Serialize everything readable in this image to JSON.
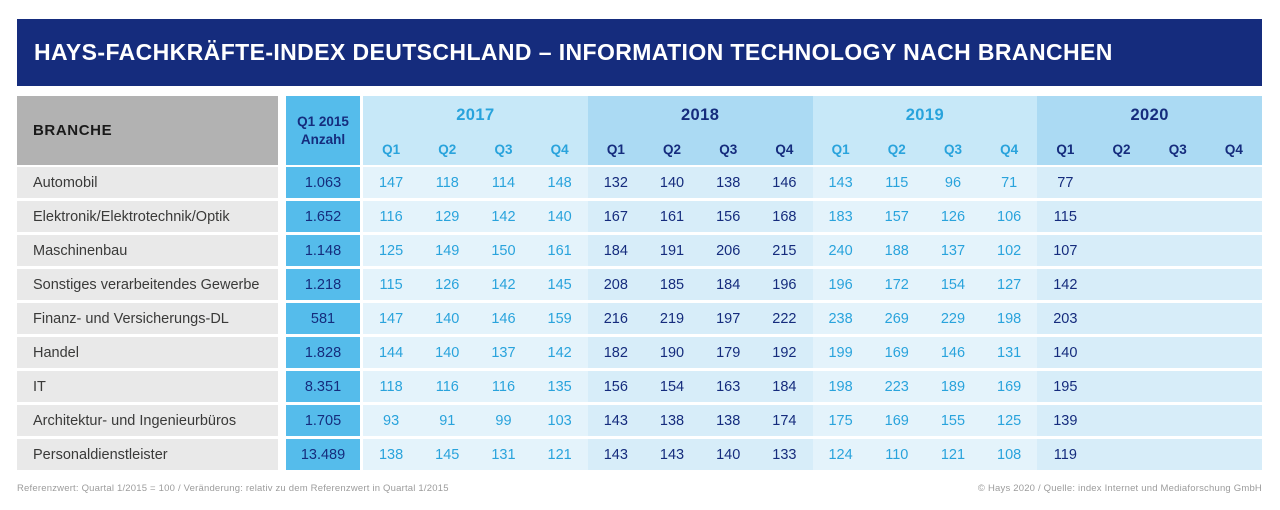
{
  "title": "HAYS-FACHKRÄFTE-INDEX DEUTSCHLAND – INFORMATION TECHNOLOGY NACH BRANCHEN",
  "colors": {
    "navy": "#152C7D",
    "accent_blue": "#29A3DC",
    "anzahl_column_bg": "#55BCEB",
    "group_header_light": "#C7E8F8",
    "group_header_medium": "#ABDAF3",
    "body_cell_light": "#E4F3FB",
    "body_cell_medium": "#D7EDF9",
    "branch_header_bg": "#B2B2B2",
    "branch_cell_bg": "#E9E9E9"
  },
  "chart_data": {
    "type": "table",
    "title": "HAYS-FACHKRÄFTE-INDEX DEUTSCHLAND – INFORMATION TECHNOLOGY NACH BRANCHEN",
    "row_header": "BRANCHE",
    "anzahl_header": [
      "Q1 2015",
      "Anzahl"
    ],
    "years": [
      {
        "year": "2017",
        "quarters": [
          "Q1",
          "Q2",
          "Q3",
          "Q4"
        ]
      },
      {
        "year": "2018",
        "quarters": [
          "Q1",
          "Q2",
          "Q3",
          "Q4"
        ]
      },
      {
        "year": "2019",
        "quarters": [
          "Q1",
          "Q2",
          "Q3",
          "Q4"
        ]
      },
      {
        "year": "2020",
        "quarters": [
          "Q1",
          "Q2",
          "Q3",
          "Q4"
        ]
      }
    ],
    "reference_note": "Referenzwert: Quartal 1/2015 = 100",
    "rows": [
      {
        "branch": "Automobil",
        "anzahl": "1.063",
        "values": [
          "147",
          "118",
          "114",
          "148",
          "132",
          "140",
          "138",
          "146",
          "143",
          "115",
          "96",
          "71",
          "77",
          "",
          "",
          ""
        ]
      },
      {
        "branch": "Elektronik/Elektrotechnik/Optik",
        "anzahl": "1.652",
        "values": [
          "116",
          "129",
          "142",
          "140",
          "167",
          "161",
          "156",
          "168",
          "183",
          "157",
          "126",
          "106",
          "115",
          "",
          "",
          ""
        ]
      },
      {
        "branch": "Maschinenbau",
        "anzahl": "1.148",
        "values": [
          "125",
          "149",
          "150",
          "161",
          "184",
          "191",
          "206",
          "215",
          "240",
          "188",
          "137",
          "102",
          "107",
          "",
          "",
          ""
        ]
      },
      {
        "branch": "Sonstiges verarbeitendes Gewerbe",
        "anzahl": "1.218",
        "values": [
          "115",
          "126",
          "142",
          "145",
          "208",
          "185",
          "184",
          "196",
          "196",
          "172",
          "154",
          "127",
          "142",
          "",
          "",
          ""
        ]
      },
      {
        "branch": "Finanz- und Versicherungs-DL",
        "anzahl": "581",
        "values": [
          "147",
          "140",
          "146",
          "159",
          "216",
          "219",
          "197",
          "222",
          "238",
          "269",
          "229",
          "198",
          "203",
          "",
          "",
          ""
        ]
      },
      {
        "branch": "Handel",
        "anzahl": "1.828",
        "values": [
          "144",
          "140",
          "137",
          "142",
          "182",
          "190",
          "179",
          "192",
          "199",
          "169",
          "146",
          "131",
          "140",
          "",
          "",
          ""
        ]
      },
      {
        "branch": "IT",
        "anzahl": "8.351",
        "values": [
          "118",
          "116",
          "116",
          "135",
          "156",
          "154",
          "163",
          "184",
          "198",
          "223",
          "189",
          "169",
          "195",
          "",
          "",
          ""
        ]
      },
      {
        "branch": "Architektur- und Ingenieurbüros",
        "anzahl": "1.705",
        "values": [
          "93",
          "91",
          "99",
          "103",
          "143",
          "138",
          "138",
          "174",
          "175",
          "169",
          "155",
          "125",
          "139",
          "",
          "",
          ""
        ]
      },
      {
        "branch": "Personaldienstleister",
        "anzahl": "13.489",
        "values": [
          "138",
          "145",
          "131",
          "121",
          "143",
          "143",
          "140",
          "133",
          "124",
          "110",
          "121",
          "108",
          "119",
          "",
          "",
          ""
        ]
      }
    ]
  },
  "footer": {
    "left": "Referenzwert: Quartal 1/2015 = 100 / Veränderung: relativ zu dem Referenzwert in Quartal 1/2015",
    "right": "© Hays 2020 / Quelle: index Internet und Mediaforschung GmbH"
  }
}
